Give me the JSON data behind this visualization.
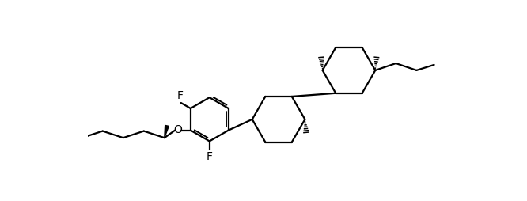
{
  "line_color": "#000000",
  "background_color": "#ffffff",
  "lw": 1.6,
  "figsize": [
    6.66,
    2.54
  ],
  "dpi": 100,
  "font_size": 10,
  "label_F1": "F",
  "label_F2": "F",
  "label_O": "O"
}
